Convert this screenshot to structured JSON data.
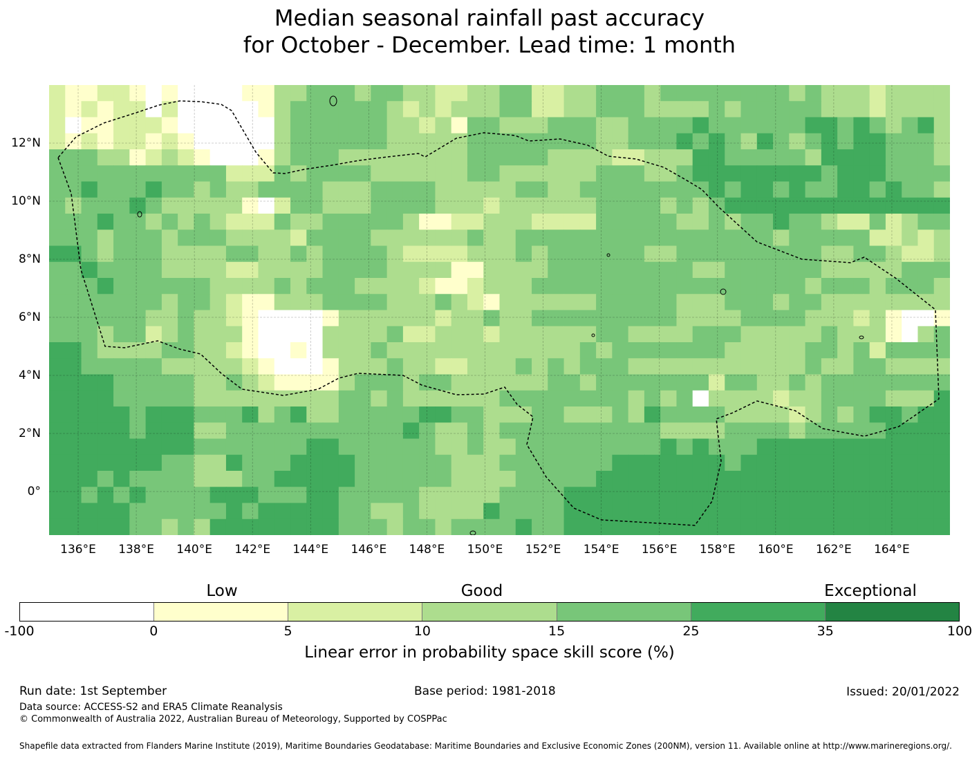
{
  "title": {
    "line1": "Median seasonal rainfall past accuracy",
    "line2": "for October - December. Lead time: 1 month"
  },
  "map": {
    "lon_range": [
      135,
      166
    ],
    "lat_range": [
      -1.5,
      14
    ],
    "x_ticks": [
      "136°E",
      "138°E",
      "140°E",
      "142°E",
      "144°E",
      "146°E",
      "148°E",
      "150°E",
      "152°E",
      "154°E",
      "156°E",
      "158°E",
      "160°E",
      "162°E",
      "164°E"
    ],
    "y_ticks": [
      "12°N",
      "10°N",
      "8°N",
      "6°N",
      "4°N",
      "2°N",
      "0°"
    ],
    "x_tick_values": [
      136,
      138,
      140,
      142,
      144,
      146,
      148,
      150,
      152,
      154,
      156,
      158,
      160,
      162,
      164
    ],
    "y_tick_values": [
      12,
      10,
      8,
      6,
      4,
      2,
      0
    ],
    "boundary": "dashed EEZ outline (Federated States of Micronesia)"
  },
  "colorbar": {
    "categories": [
      "Low",
      "Good",
      "Exceptional"
    ],
    "ticks": [
      "-100",
      "0",
      "5",
      "10",
      "15",
      "25",
      "35",
      "100"
    ],
    "colors": [
      "#ffffff",
      "#ffffcc",
      "#d9f0a3",
      "#addd8e",
      "#78c679",
      "#41ab5d",
      "#238443"
    ],
    "label": "Linear error in probability space skill score (%)"
  },
  "footer": {
    "run_date": "Run date: 1st September",
    "base_period": "Base period: 1981-2018",
    "issued": "Issued: 20/01/2022",
    "data_source": "Data source: ACCESS-S2 and ERA5 Climate Reanalysis",
    "copyright": "© Commonwealth of Australia 2022, Australian Bureau of Meteorology, Supported by COSPPac",
    "shapefile": "Shapefile data extracted from Flanders Marine Institute (2019), Maritime Boundaries Geodatabase: Maritime Boundaries and Exclusive Economic Zones (200NM), version 11. Available online at http://www.marineregions.org/."
  }
}
